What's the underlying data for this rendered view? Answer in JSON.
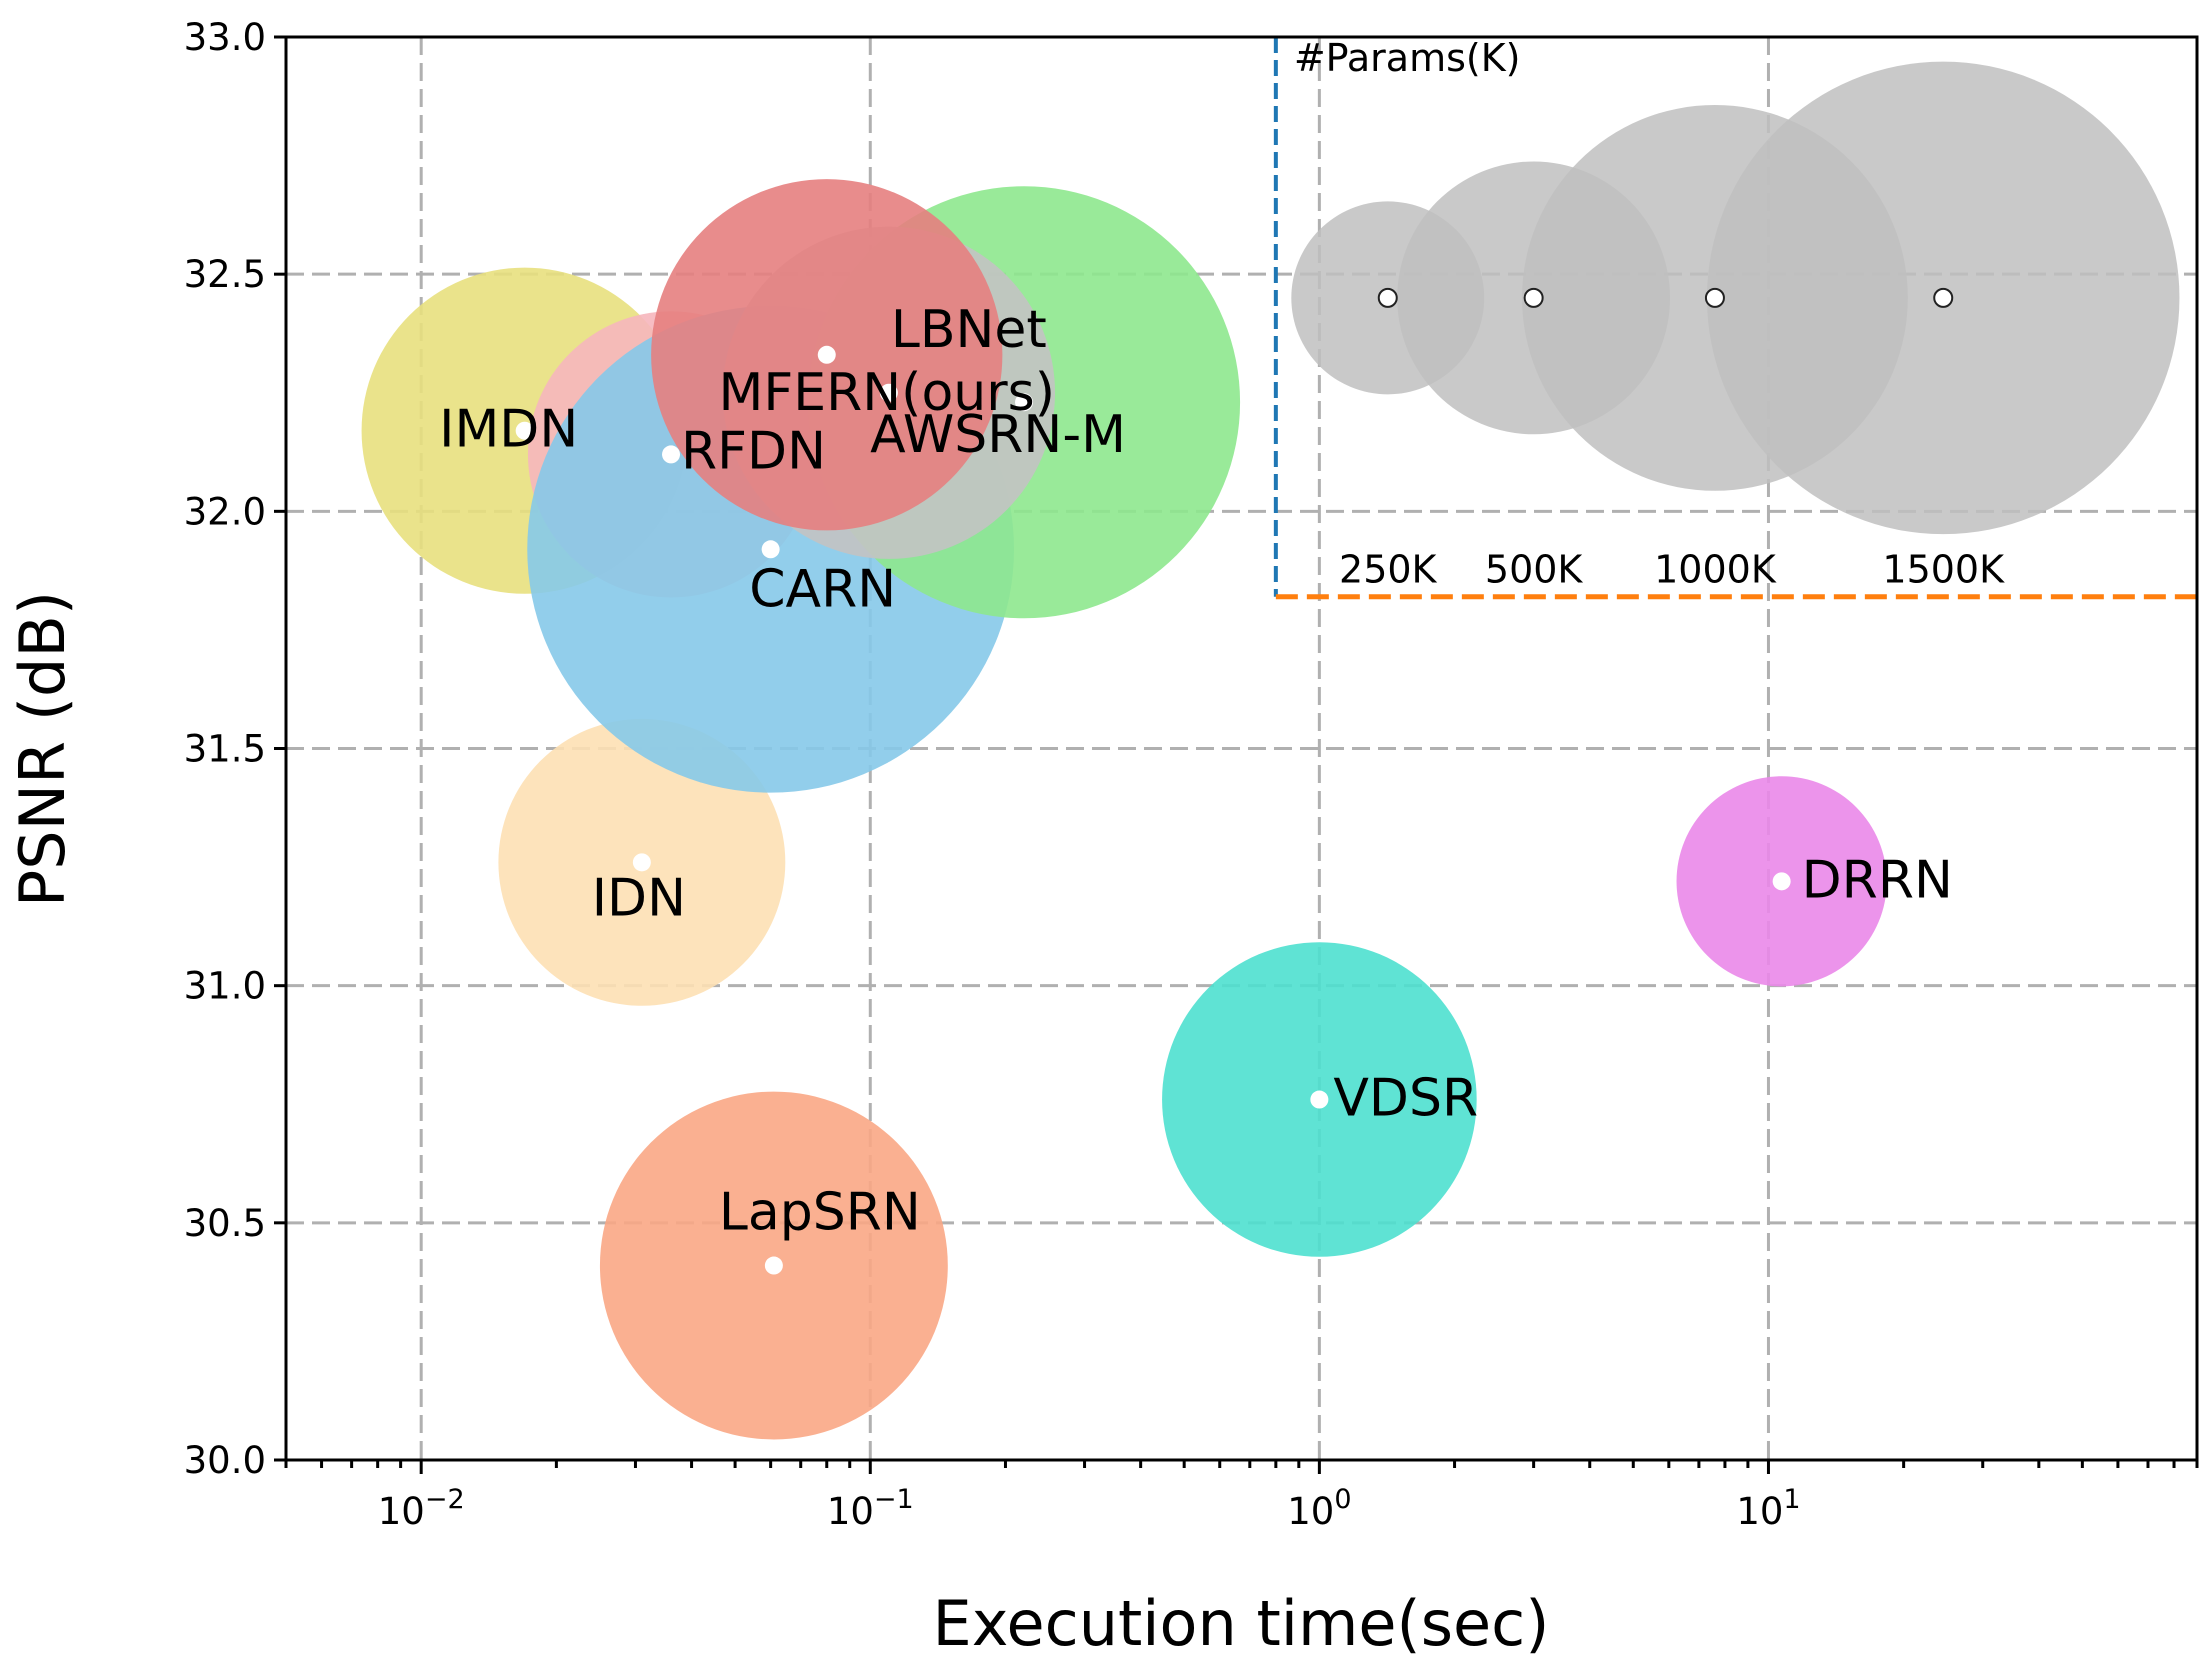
{
  "chart_data": {
    "type": "scatter",
    "subtype": "bubble",
    "title": "",
    "xlabel": "Execution time(sec)",
    "ylabel": "PSNR (dB)",
    "xscale": "log",
    "xlim": [
      0.005,
      90
    ],
    "ylim": [
      30.0,
      33.0
    ],
    "grid": true,
    "xticks": [
      {
        "value": 0.01,
        "base": "10",
        "exp": "−2"
      },
      {
        "value": 0.1,
        "base": "10",
        "exp": "−1"
      },
      {
        "value": 1,
        "base": "10",
        "exp": "0"
      },
      {
        "value": 10,
        "base": "10",
        "exp": "1"
      }
    ],
    "yticks": [
      "30.0",
      "30.5",
      "31.0",
      "31.5",
      "32.0",
      "32.5",
      "33.0"
    ],
    "series": [
      {
        "name": "IMDN",
        "x": 0.017,
        "y": 32.17,
        "params_k": 715,
        "color": "#e8e07e",
        "label": "IMDN"
      },
      {
        "name": "IDN",
        "x": 0.031,
        "y": 31.26,
        "params_k": 553,
        "color": "#fde0b4",
        "label": "IDN"
      },
      {
        "name": "RFDN",
        "x": 0.036,
        "y": 32.12,
        "params_k": 550,
        "color": "#f6b6bd",
        "label": "RFDN"
      },
      {
        "name": "CARN",
        "x": 0.06,
        "y": 31.92,
        "params_k": 1592,
        "color": "#86c9e9",
        "label": "CARN"
      },
      {
        "name": "AWSRN-M",
        "x": 0.22,
        "y": 32.23,
        "params_k": 1254,
        "color": "#8ee88e",
        "label": "AWSRN-M"
      },
      {
        "name": "LBNet",
        "x": 0.11,
        "y": 32.25,
        "params_k": 742,
        "color": "#c3c3c3",
        "label": "LBNet"
      },
      {
        "name": "MFERN(ours)",
        "x": 0.08,
        "y": 32.33,
        "params_k": 829,
        "color": "#e57f7f",
        "label": "MFERN(ours)"
      },
      {
        "name": "LapSRN",
        "x": 0.061,
        "y": 30.41,
        "params_k": 813,
        "color": "#f9a785",
        "label": "LapSRN"
      },
      {
        "name": "VDSR",
        "x": 1.0,
        "y": 30.76,
        "params_k": 665,
        "color": "#4ee0cf",
        "label": "VDSR"
      },
      {
        "name": "DRRN",
        "x": 10.7,
        "y": 31.22,
        "params_k": 297,
        "color": "#ea88e9",
        "label": "DRRN"
      }
    ],
    "size_legend": {
      "title": "#Params(K)",
      "items": [
        {
          "params_k": 250,
          "label": "250K",
          "x": 1.42,
          "y": 32.45
        },
        {
          "params_k": 500,
          "label": "500K",
          "x": 3.0,
          "y": 32.45
        },
        {
          "params_k": 1000,
          "label": "1000K",
          "x": 7.6,
          "y": 32.45
        },
        {
          "params_k": 1500,
          "label": "1500K",
          "x": 24.5,
          "y": 32.45
        }
      ],
      "bubble_color": "#c0c0c0",
      "x_start": 0.8,
      "y_bottom": 31.82,
      "left_line_color": "#1f77b4",
      "bottom_line_color": "#ff7f0e"
    }
  }
}
